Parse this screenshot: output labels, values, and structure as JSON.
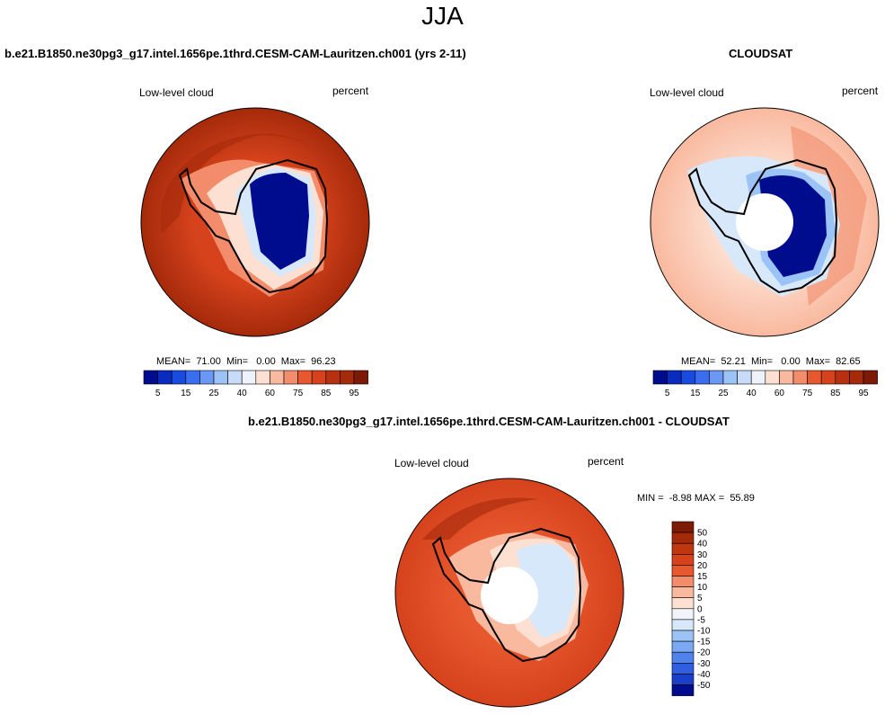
{
  "page_title": "JJA",
  "colors": {
    "deep_red": "#a52a0a",
    "red": "#d5421c",
    "orange_red": "#e8582f",
    "salmon": "#f28c6a",
    "light_salmon": "#f9b99f",
    "peach": "#fde0d2",
    "pale_blue": "#d8e8fb",
    "light_blue": "#9cc3f5",
    "navy": "#000c8e",
    "coast": "#000000"
  },
  "panels": [
    {
      "id": "model",
      "title": "b.e21.B1850.ne30pg3_g17.intel.1656pe.1thrd.CESM-CAM-Lauritzen.ch001 (yrs 2-11)",
      "var_label": "Low-level cloud",
      "units": "percent",
      "stats": "MEAN=  71.00  Min=   0.00  Max=  96.23",
      "colorbar_labels": [
        "5",
        "15",
        "25",
        "40",
        "60",
        "75",
        "85",
        "95"
      ]
    },
    {
      "id": "obs",
      "title": "CLOUDSAT",
      "var_label": "Low-level cloud",
      "units": "percent",
      "stats": "MEAN=  52.21  Min=   0.00  Max=  82.65",
      "colorbar_labels": [
        "5",
        "15",
        "25",
        "40",
        "60",
        "75",
        "85",
        "95"
      ]
    },
    {
      "id": "diff",
      "title": "b.e21.B1850.ne30pg3_g17.intel.1656pe.1thrd.CESM-CAM-Lauritzen.ch001 - CLOUDSAT",
      "var_label": "Low-level cloud",
      "units": "percent",
      "stats": "MIN =  -8.98 MAX =  55.89",
      "colorbar_labels": [
        "50",
        "40",
        "30",
        "20",
        "15",
        "10",
        "5",
        "0",
        "-5",
        "-10",
        "-15",
        "-20",
        "-30",
        "-40",
        "-50"
      ]
    }
  ]
}
